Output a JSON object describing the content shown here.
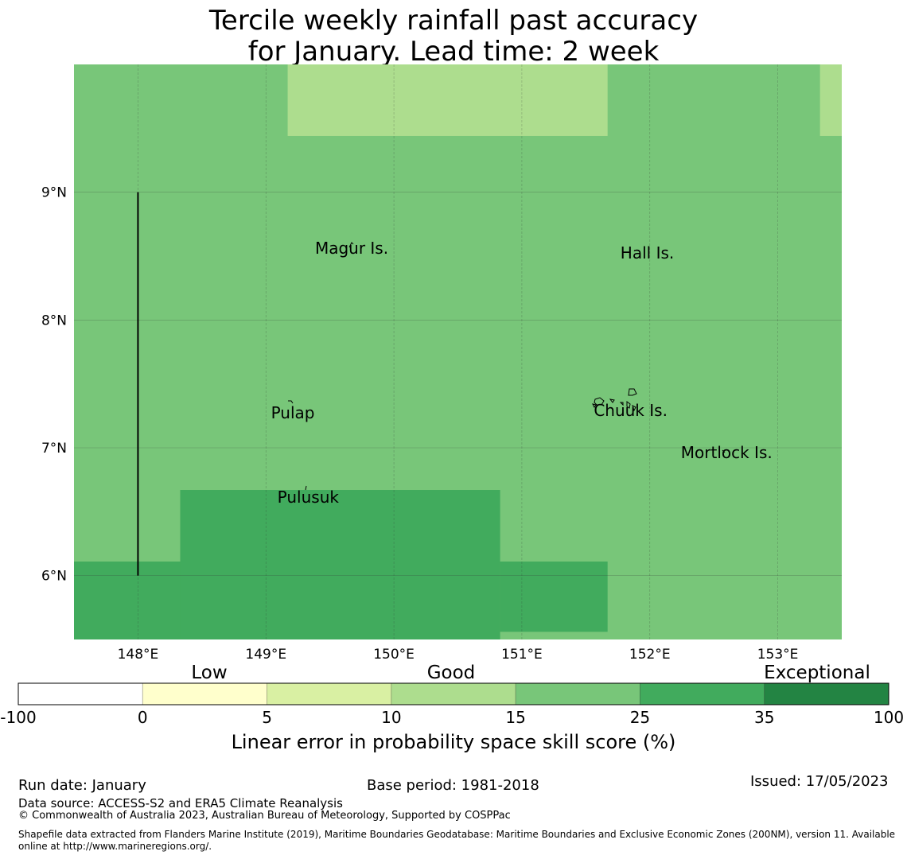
{
  "title": {
    "line1": "Tercile weekly rainfall past accuracy",
    "line2": "for January. Lead time: 2 week"
  },
  "map": {
    "lon_range": [
      147.5,
      153.5
    ],
    "lat_range": [
      5.5,
      10.0
    ],
    "lon_ticks": [
      {
        "value": 148,
        "label": "148°E"
      },
      {
        "value": 149,
        "label": "149°E"
      },
      {
        "value": 150,
        "label": "150°E"
      },
      {
        "value": 151,
        "label": "151°E"
      },
      {
        "value": 152,
        "label": "152°E"
      },
      {
        "value": 153,
        "label": "153°E"
      }
    ],
    "lat_ticks": [
      {
        "value": 6,
        "label": "6°N"
      },
      {
        "value": 7,
        "label": "7°N"
      },
      {
        "value": 8,
        "label": "8°N"
      },
      {
        "value": 9,
        "label": "9°N"
      }
    ],
    "background_class": "15-25",
    "cells": [
      {
        "lon0": 149.17,
        "lon1": 151.67,
        "lat0": 9.44,
        "lat1": 10.0,
        "class": "10-15"
      },
      {
        "lon0": 153.33,
        "lon1": 153.5,
        "lat0": 9.44,
        "lat1": 10.0,
        "class": "10-15"
      },
      {
        "lon0": 148.33,
        "lon1": 150.83,
        "lat0": 5.5,
        "lat1": 6.67,
        "class": "25-35"
      },
      {
        "lon0": 147.5,
        "lon1": 148.33,
        "lat0": 5.5,
        "lat1": 6.11,
        "class": "25-35"
      },
      {
        "lon0": 150.83,
        "lon1": 151.67,
        "lat0": 5.56,
        "lat1": 6.11,
        "class": "25-35"
      }
    ],
    "boundary_line": {
      "lon": 148.0,
      "lat0": 6.0,
      "lat1": 9.0
    },
    "places": [
      {
        "name": "Magur Is.",
        "lon": 149.67,
        "lat": 8.52,
        "anchor": "middle"
      },
      {
        "name": "Hall Is.",
        "lon": 151.98,
        "lat": 8.48,
        "anchor": "middle"
      },
      {
        "name": "Pulap",
        "lon": 149.21,
        "lat": 7.23,
        "anchor": "middle"
      },
      {
        "name": "Chuuk Is.",
        "lon": 151.85,
        "lat": 7.25,
        "anchor": "middle"
      },
      {
        "name": "Mortlock Is.",
        "lon": 152.6,
        "lat": 6.92,
        "anchor": "middle"
      },
      {
        "name": "Pulusuk",
        "lon": 149.33,
        "lat": 6.57,
        "anchor": "middle"
      }
    ]
  },
  "colorbar": {
    "bins": [
      {
        "lo": "-100",
        "hi": "0",
        "color": "#ffffff",
        "class": "-100-0"
      },
      {
        "lo": "0",
        "hi": "5",
        "color": "#ffffcc",
        "class": "0-5"
      },
      {
        "lo": "5",
        "hi": "10",
        "color": "#d9f0a3",
        "class": "5-10"
      },
      {
        "lo": "10",
        "hi": "15",
        "color": "#addd8e",
        "class": "10-15"
      },
      {
        "lo": "15",
        "hi": "25",
        "color": "#78c679",
        "class": "15-25"
      },
      {
        "lo": "25",
        "hi": "35",
        "color": "#41ab5d",
        "class": "25-35"
      },
      {
        "lo": "35",
        "hi": "100",
        "color": "#238443",
        "class": "35-100"
      }
    ],
    "tick_labels": [
      "-100",
      "0",
      "5",
      "10",
      "15",
      "25",
      "35",
      "100"
    ],
    "category_labels": {
      "low": "Low",
      "good": "Good",
      "exceptional": "Exceptional"
    },
    "label": "Linear error in probability space skill score (%)"
  },
  "footer": {
    "run_date": "Run date: January",
    "base_period": "Base period: 1981-2018",
    "issued": "Issued: 17/05/2023",
    "data_source": "Data source: ACCESS-S2 and ERA5 Climate Reanalysis",
    "copyright": "© Commonwealth of Australia 2023, Australian Bureau of Meteorology, Supported by COSPPac",
    "shapefile_line1": "Shapefile data extracted from Flanders Marine Institute (2019), Maritime Boundaries Geodatabase: Maritime Boundaries and Exclusive Economic Zones (200NM), version 11. Available",
    "shapefile_line2": "online at http://www.marineregions.org/."
  }
}
